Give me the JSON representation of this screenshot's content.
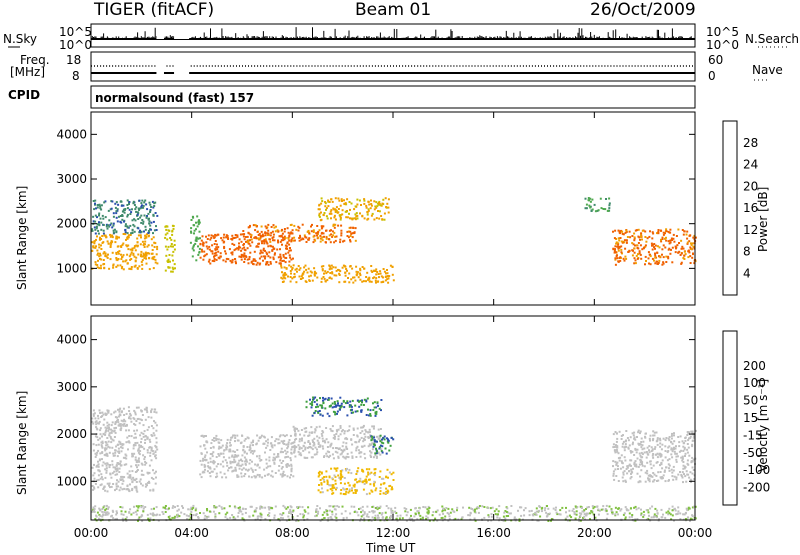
{
  "header": {
    "station": "TIGER (fitACF)",
    "beam": "Beam 01",
    "date": "26/Oct/2009"
  },
  "strip_labels": {
    "nsky": "N.Sky",
    "nsky_top": "10^5",
    "nsky_bottom": "10^0",
    "nsearch": "N.Search",
    "nsearch_top": "10^5",
    "nsearch_bottom": "10^0",
    "freq_line1": "Freq.",
    "freq_line2": "[MHz]",
    "freq_top": "18",
    "freq_bottom": "8",
    "nave": "Nave",
    "nave_top": "60",
    "nave_bottom": "0",
    "cpid": "CPID",
    "cpid_text": "normalsound (fast) 157"
  },
  "colors": {
    "power": [
      "#1a22dd",
      "#2a4fae",
      "#3f8a6b",
      "#4fa84f",
      "#c8c000",
      "#f0a000",
      "#f06000",
      "#e81010"
    ],
    "velocity": [
      "#e81010",
      "#f05000",
      "#f09000",
      "#f0b800",
      "#c0c0c0",
      "#c0c0c0",
      "#80c040",
      "#3c9e3c",
      "#2a4fae",
      "#1a22dd"
    ]
  },
  "chart_data": [
    {
      "type": "heatmap",
      "title": "Power",
      "ylabel": "Slant Range [km]",
      "ylim": [
        180,
        4500
      ],
      "y_ticks": [
        1000,
        2000,
        3000,
        4000
      ],
      "xlim": [
        0,
        24
      ],
      "colorbar": {
        "label": "Power [dB]",
        "ticks": [
          4,
          8,
          12,
          16,
          20,
          24,
          28
        ],
        "range": [
          0,
          32
        ]
      },
      "bands": [
        {
          "t0": 0.0,
          "t1": 2.6,
          "r0": 1000,
          "r1": 1800,
          "v": 22
        },
        {
          "t0": 0.0,
          "t1": 2.6,
          "r0": 1800,
          "r1": 2550,
          "v": 9
        },
        {
          "t0": 2.9,
          "t1": 3.3,
          "r0": 900,
          "r1": 2000,
          "v": 18
        },
        {
          "t0": 3.9,
          "t1": 4.3,
          "r0": 1200,
          "r1": 2200,
          "v": 14
        },
        {
          "t0": 4.3,
          "t1": 8.0,
          "r0": 1100,
          "r1": 1800,
          "v": 26
        },
        {
          "t0": 6.0,
          "t1": 10.5,
          "r0": 1600,
          "r1": 2000,
          "v": 25
        },
        {
          "t0": 9.0,
          "t1": 11.8,
          "r0": 2100,
          "r1": 2600,
          "v": 21
        },
        {
          "t0": 7.5,
          "t1": 12.0,
          "r0": 700,
          "r1": 1100,
          "v": 22
        },
        {
          "t0": 20.7,
          "t1": 24.0,
          "r0": 1100,
          "r1": 1900,
          "v": 25
        },
        {
          "t0": 19.6,
          "t1": 20.6,
          "r0": 2300,
          "r1": 2600,
          "v": 12
        }
      ]
    },
    {
      "type": "heatmap",
      "title": "Velocity",
      "ylabel": "Slant Range [km]",
      "ylim": [
        180,
        4500
      ],
      "y_ticks": [
        1000,
        2000,
        3000,
        4000
      ],
      "xlim": [
        0,
        24
      ],
      "xlabel": "Time UT",
      "x_ticks": [
        "00:00",
        "04:00",
        "08:00",
        "12:00",
        "16:00",
        "20:00",
        "00:00"
      ],
      "colorbar": {
        "label": "Velocity [m s⁻¹]",
        "ticks": [
          -200,
          -100,
          -50,
          -15,
          15,
          50,
          100,
          200
        ],
        "range": [
          -250,
          250
        ]
      },
      "bands": [
        {
          "t0": 0.0,
          "t1": 2.6,
          "r0": 800,
          "r1": 2600,
          "v": 0
        },
        {
          "t0": 4.3,
          "t1": 8.0,
          "r0": 1100,
          "r1": 2000,
          "v": 0
        },
        {
          "t0": 8.0,
          "t1": 11.5,
          "r0": 1500,
          "r1": 2200,
          "v": 0
        },
        {
          "t0": 8.5,
          "t1": 11.5,
          "r0": 2400,
          "r1": 2800,
          "v": 150
        },
        {
          "t0": 9.0,
          "t1": 12.0,
          "r0": 750,
          "r1": 1300,
          "v": -70
        },
        {
          "t0": 11.0,
          "t1": 12.0,
          "r0": 1600,
          "r1": 2000,
          "v": 150
        },
        {
          "t0": 20.7,
          "t1": 24.0,
          "r0": 1000,
          "r1": 2100,
          "v": 0
        },
        {
          "t0": 0.0,
          "t1": 24.0,
          "r0": 180,
          "r1": 500,
          "v": 40
        }
      ]
    }
  ]
}
